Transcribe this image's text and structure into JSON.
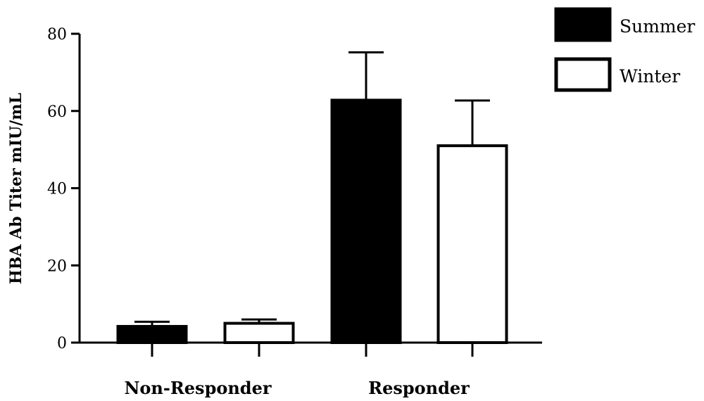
{
  "chart_data": {
    "type": "bar",
    "ylabel": "HBA Ab Titer mIU/mL",
    "ylim": [
      0,
      80
    ],
    "yticks": [
      0,
      20,
      40,
      60,
      80
    ],
    "categories": [
      "Non-Responder",
      "Responder"
    ],
    "series": [
      {
        "name": "Summer",
        "values": [
          4.2,
          62.8
        ],
        "error": [
          1.2,
          12.4
        ],
        "color": "#000000"
      },
      {
        "name": "Winter",
        "values": [
          5.0,
          51.0
        ],
        "error": [
          1.0,
          11.7
        ],
        "color": "#ffffff"
      }
    ],
    "legend_position": "top-right",
    "grid": false
  }
}
